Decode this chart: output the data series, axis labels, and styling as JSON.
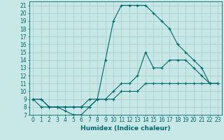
{
  "xlabel": "Humidex (Indice chaleur)",
  "background_color": "#c8e8e8",
  "grid_color": "#a8d0d0",
  "line_color": "#006868",
  "xlim": [
    -0.5,
    23.5
  ],
  "ylim": [
    7,
    21.5
  ],
  "xticks": [
    0,
    1,
    2,
    3,
    4,
    5,
    6,
    7,
    8,
    9,
    10,
    11,
    12,
    13,
    14,
    15,
    16,
    17,
    18,
    19,
    20,
    21,
    22,
    23
  ],
  "yticks": [
    7,
    8,
    9,
    10,
    11,
    12,
    13,
    14,
    15,
    16,
    17,
    18,
    19,
    20,
    21
  ],
  "series": [
    {
      "x": [
        0,
        1,
        2,
        3,
        4,
        5,
        6,
        7,
        8,
        9,
        10,
        11,
        12,
        13,
        14,
        15,
        16,
        17,
        18,
        19,
        20,
        21,
        22,
        23
      ],
      "y": [
        9,
        8,
        8,
        8,
        7.5,
        7,
        7,
        8,
        9,
        14,
        19,
        21,
        21,
        21,
        21,
        20,
        19,
        18,
        16,
        15,
        14,
        13,
        11,
        11
      ]
    },
    {
      "x": [
        0,
        1,
        2,
        3,
        4,
        5,
        6,
        7,
        8,
        9,
        10,
        11,
        12,
        13,
        14,
        15,
        16,
        17,
        18,
        19,
        20,
        21,
        22,
        23
      ],
      "y": [
        9,
        9,
        8,
        8,
        8,
        8,
        8,
        9,
        9,
        9,
        10,
        11,
        11,
        12,
        15,
        13,
        13,
        14,
        14,
        14,
        13,
        12,
        11,
        11
      ]
    },
    {
      "x": [
        0,
        1,
        2,
        3,
        4,
        5,
        6,
        7,
        8,
        9,
        10,
        11,
        12,
        13,
        14,
        15,
        16,
        17,
        18,
        19,
        20,
        21,
        22,
        23
      ],
      "y": [
        9,
        9,
        8,
        8,
        8,
        8,
        8,
        8,
        9,
        9,
        9,
        10,
        10,
        10,
        11,
        11,
        11,
        11,
        11,
        11,
        11,
        11,
        11,
        11
      ]
    }
  ]
}
